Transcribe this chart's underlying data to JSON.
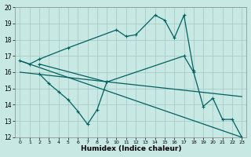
{
  "xlabel": "Humidex (Indice chaleur)",
  "xlim": [
    -0.5,
    23.5
  ],
  "ylim": [
    12,
    20
  ],
  "yticks": [
    12,
    13,
    14,
    15,
    16,
    17,
    18,
    19,
    20
  ],
  "xticks": [
    0,
    1,
    2,
    3,
    4,
    5,
    6,
    7,
    8,
    9,
    10,
    11,
    12,
    13,
    14,
    15,
    16,
    17,
    18,
    19,
    20,
    21,
    22,
    23
  ],
  "bg_color": "#c8e8e4",
  "line_color": "#006060",
  "grid_color": "#a0c8c4",
  "series": [
    {
      "x": [
        0,
        1,
        2,
        5,
        10,
        11,
        12,
        14,
        15,
        16,
        17,
        18
      ],
      "y": [
        16.7,
        16.5,
        16.8,
        17.5,
        18.6,
        18.2,
        18.3,
        19.5,
        19.2,
        18.1,
        19.5,
        16.1
      ],
      "marker": true
    },
    {
      "x": [
        2,
        3,
        4,
        5,
        6,
        7,
        8,
        9
      ],
      "y": [
        15.9,
        15.3,
        14.8,
        14.3,
        13.6,
        12.8,
        13.7,
        15.4
      ],
      "marker": true
    },
    {
      "x": [
        0,
        23
      ],
      "y": [
        16.7,
        12.0
      ],
      "marker": false
    },
    {
      "x": [
        0,
        23
      ],
      "y": [
        16.0,
        14.5
      ],
      "marker": false
    },
    {
      "x": [
        2,
        9,
        17,
        18,
        19,
        20,
        21,
        22,
        23
      ],
      "y": [
        16.5,
        15.4,
        17.0,
        16.0,
        13.9,
        14.4,
        13.1,
        13.1,
        12.0
      ],
      "marker": true
    }
  ]
}
